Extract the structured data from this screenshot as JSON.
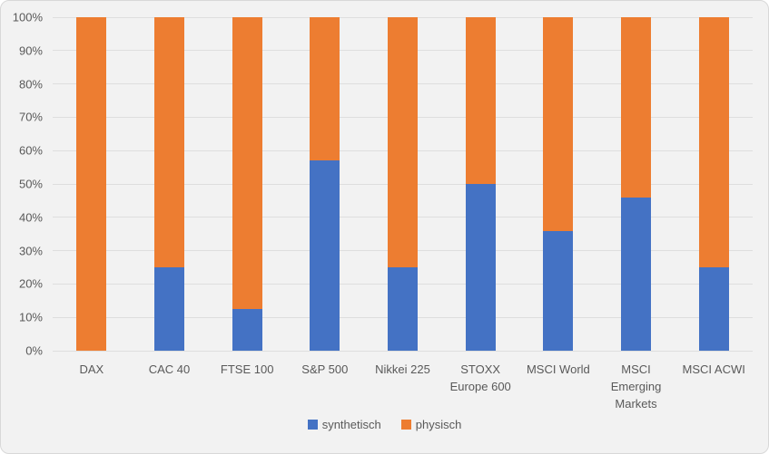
{
  "chart_data": {
    "type": "bar",
    "subtype": "stacked-100-percent",
    "title": "",
    "categories": [
      "DAX",
      "CAC 40",
      "FTSE 100",
      "S&P 500",
      "Nikkei 225",
      "STOXX Europe 600",
      "MSCI World",
      "MSCI Emerging Markets",
      "MSCI ACWI"
    ],
    "series": [
      {
        "name": "synthetisch",
        "color": "#4472C4",
        "values": [
          0,
          25,
          12.5,
          57,
          25,
          50,
          36,
          46,
          25
        ]
      },
      {
        "name": "physisch",
        "color": "#ED7D31",
        "values": [
          100,
          75,
          87.5,
          43,
          75,
          50,
          64,
          54,
          75
        ]
      }
    ],
    "xlabel": "",
    "ylabel": "",
    "ylim": [
      0,
      100
    ],
    "y_ticks": [
      "100%",
      "90%",
      "80%",
      "70%",
      "60%",
      "50%",
      "40%",
      "30%",
      "20%",
      "10%",
      "0%"
    ],
    "grid": true,
    "legend_position": "bottom"
  },
  "colors": {
    "background": "#F2F2F2",
    "frame_border": "#D8D8D8",
    "gridline": "#DEDEDE",
    "axis_text": "#595959"
  }
}
